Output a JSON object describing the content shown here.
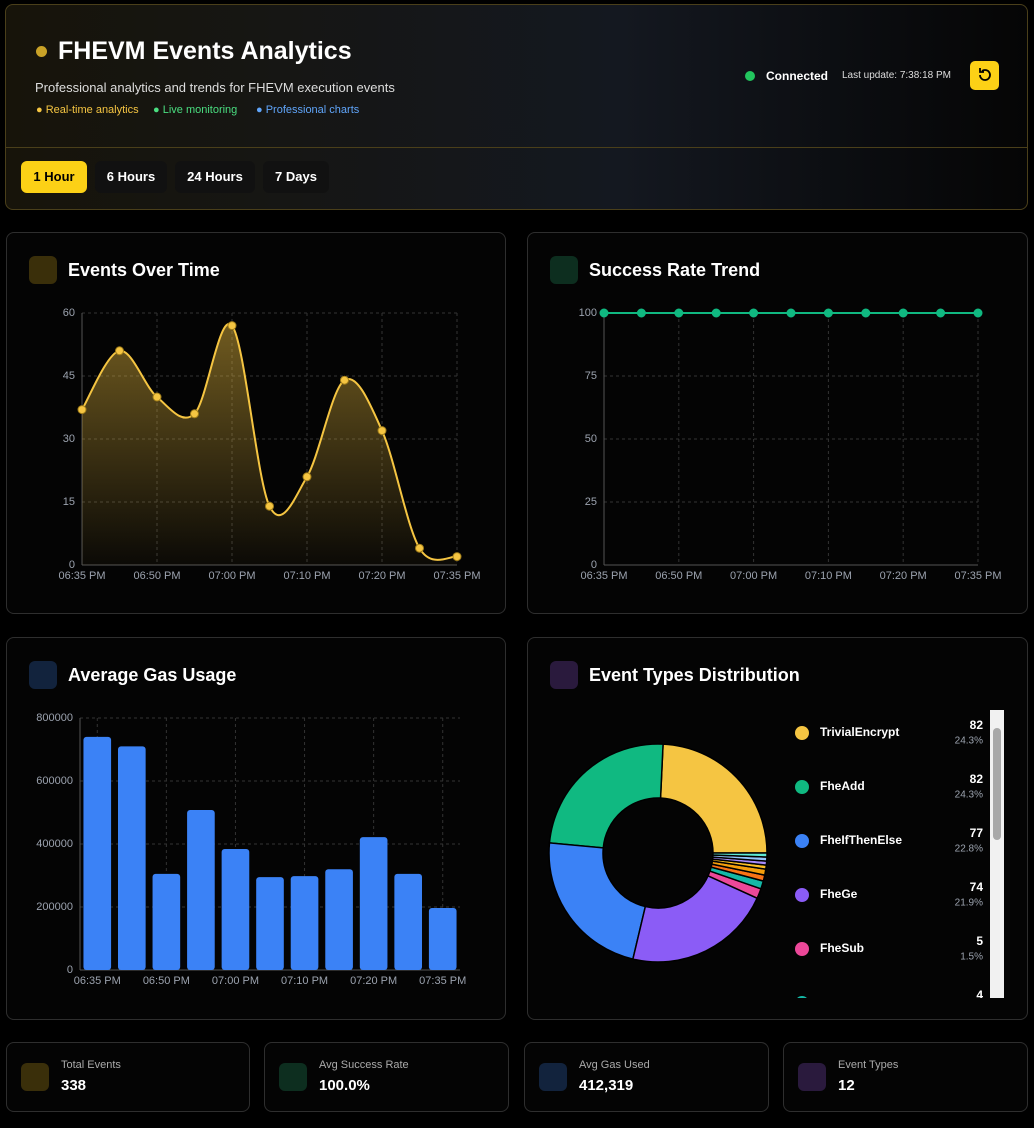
{
  "header": {
    "title": "FHEVM Events Analytics",
    "subtitle": "Professional analytics and trends for FHEVM execution events",
    "badges": [
      "Real-time analytics",
      "Live monitoring",
      "Professional charts"
    ],
    "status": "Connected",
    "last_update": "Last update: 7:38:18 PM"
  },
  "time_ranges": [
    "1 Hour",
    "6 Hours",
    "24 Hours",
    "7 Days"
  ],
  "chart_data": [
    {
      "type": "area",
      "title": "Events Over Time",
      "color": "#f5c542",
      "categories": [
        "06:35 PM",
        null,
        "06:50 PM",
        null,
        "07:00 PM",
        null,
        "07:10 PM",
        null,
        "07:20 PM",
        null,
        "07:35 PM"
      ],
      "values": [
        37,
        51,
        40,
        36,
        57,
        14,
        21,
        44,
        32,
        4,
        2
      ],
      "ylim": [
        0,
        60
      ],
      "yticks": [
        0,
        15,
        30,
        45,
        60
      ],
      "grid": true
    },
    {
      "type": "line",
      "title": "Success Rate Trend",
      "color": "#10b981",
      "categories": [
        "06:35 PM",
        null,
        "06:50 PM",
        null,
        "07:00 PM",
        null,
        "07:10 PM",
        null,
        "07:20 PM",
        null,
        "07:35 PM"
      ],
      "values": [
        100,
        100,
        100,
        100,
        100,
        100,
        100,
        100,
        100,
        100,
        100
      ],
      "ylim": [
        0,
        100
      ],
      "yticks": [
        0,
        25,
        50,
        75,
        100
      ],
      "grid": true
    },
    {
      "type": "bar",
      "title": "Average Gas Usage",
      "color": "#3b82f6",
      "categories": [
        "06:35 PM",
        null,
        "06:50 PM",
        null,
        "07:00 PM",
        null,
        "07:10 PM",
        null,
        "07:20 PM",
        null,
        "07:35 PM"
      ],
      "values": [
        740000,
        710000,
        305000,
        508000,
        384000,
        295000,
        298000,
        320000,
        422000,
        305000,
        197000
      ],
      "ylim": [
        0,
        800000
      ],
      "yticks": [
        0,
        200000,
        400000,
        600000,
        800000
      ],
      "grid": true
    },
    {
      "type": "pie",
      "title": "Event Types Distribution",
      "categories": [
        "TrivialEncrypt",
        "FheAdd",
        "FheIfThenElse",
        "FheGe",
        "FheSub",
        null,
        null,
        null,
        null,
        null,
        null,
        null
      ],
      "values": [
        82,
        82,
        77,
        74,
        5,
        4,
        3,
        3,
        2,
        2,
        2,
        2
      ],
      "percent_labels": [
        "24.3%",
        "24.3%",
        "22.8%",
        "21.9%",
        "1.5%",
        null,
        null,
        null,
        null,
        null,
        null,
        null
      ],
      "colors": [
        "#f5c542",
        "#10b981",
        "#3b82f6",
        "#8b5cf6",
        "#ec4899",
        "#14b8a6",
        "#f97316",
        "#f59e0b",
        "#fbbf24",
        "#a78bfa",
        "#93c5fd",
        "#5eead4"
      ]
    }
  ],
  "stats": [
    {
      "label": "Total Events",
      "value": "338"
    },
    {
      "label": "Avg Success Rate",
      "value": "100.0%"
    },
    {
      "label": "Avg Gas Used",
      "value": "412,319"
    },
    {
      "label": "Event Types",
      "value": "12"
    }
  ]
}
